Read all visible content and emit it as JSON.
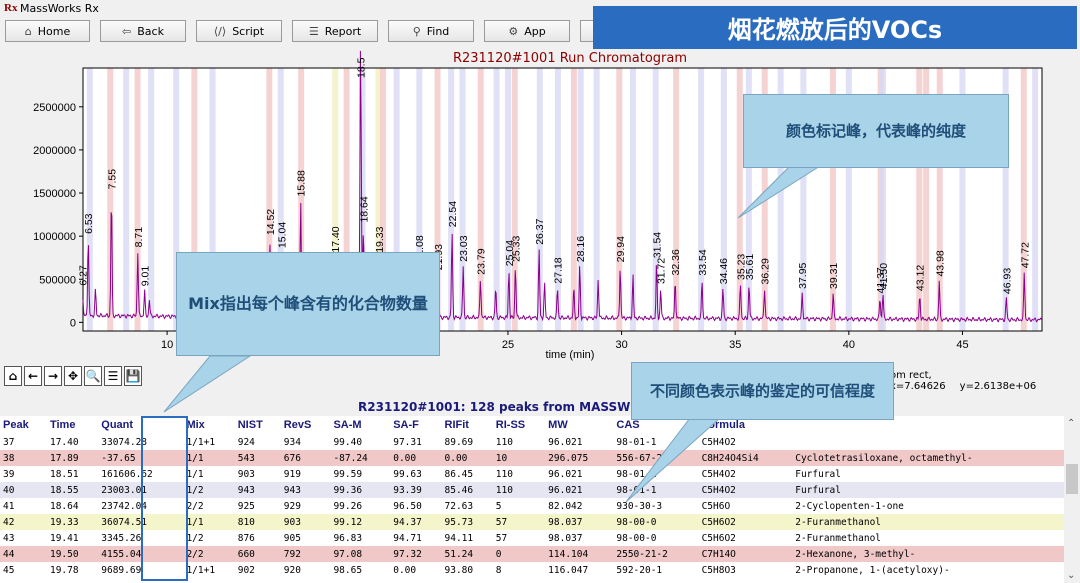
{
  "window": {
    "logo": "Rx",
    "title": "MassWorks Rx"
  },
  "toolbar": [
    {
      "label": "Home",
      "icon": "home-icon",
      "glyph": "⌂"
    },
    {
      "label": "Back",
      "icon": "back-icon",
      "glyph": "⇦"
    },
    {
      "label": "Script",
      "icon": "script-icon",
      "glyph": "⟨/⟩"
    },
    {
      "label": "Report",
      "icon": "report-icon",
      "glyph": "☰"
    },
    {
      "label": "Find",
      "icon": "find-icon",
      "glyph": "⚲"
    },
    {
      "label": "App",
      "icon": "app-icon",
      "glyph": "⚙"
    }
  ],
  "banner": "烟花燃放后的VOCs",
  "chart": {
    "title": "R231120#1001 Run Chromatogram",
    "xlabel": "time (min)"
  },
  "chart_data": {
    "type": "line",
    "title": "R231120#1001 Run Chromatogram",
    "xlabel": "time (min)",
    "ylabel": "",
    "xlim": [
      6.3,
      48.5
    ],
    "ylim": [
      -100000,
      2950000
    ],
    "xticks": [
      10,
      15,
      20,
      25,
      30,
      35,
      40,
      45
    ],
    "yticks": [
      0,
      500000,
      1000000,
      1500000,
      2000000,
      2500000
    ],
    "ytick_labels": [
      "0",
      "500000",
      "1000000",
      "1500000",
      "2000000",
      "2500000"
    ],
    "baseline": [
      [
        6.3,
        80000
      ],
      [
        10,
        70000
      ],
      [
        20,
        60000
      ],
      [
        30,
        50000
      ],
      [
        40,
        40000
      ],
      [
        48.5,
        30000
      ]
    ],
    "peaks": [
      {
        "t": 6.27,
        "h": 350000
      },
      {
        "t": 6.53,
        "h": 900000
      },
      {
        "t": 6.85,
        "h": 300000
      },
      {
        "t": 7.55,
        "h": 1420000
      },
      {
        "t": 8.71,
        "h": 750000
      },
      {
        "t": 9.01,
        "h": 300000
      },
      {
        "t": 9.22,
        "h": 200000
      },
      {
        "t": 14.52,
        "h": 900000
      },
      {
        "t": 15.04,
        "h": 750000
      },
      {
        "t": 15.88,
        "h": 1350000
      },
      {
        "t": 17.4,
        "h": 700000
      },
      {
        "t": 17.89,
        "h": 300000
      },
      {
        "t": 18.51,
        "h": 2900000
      },
      {
        "t": 18.55,
        "h": 850000
      },
      {
        "t": 18.64,
        "h": 1050000
      },
      {
        "t": 19.33,
        "h": 700000
      },
      {
        "t": 20.08,
        "h": 450000
      },
      {
        "t": 21.08,
        "h": 600000
      },
      {
        "t": 21.93,
        "h": 500000
      },
      {
        "t": 22.54,
        "h": 1000000
      },
      {
        "t": 23.03,
        "h": 600000
      },
      {
        "t": 23.79,
        "h": 450000
      },
      {
        "t": 24.46,
        "h": 350000
      },
      {
        "t": 25.04,
        "h": 550000
      },
      {
        "t": 25.33,
        "h": 600000
      },
      {
        "t": 26.37,
        "h": 800000
      },
      {
        "t": 26.61,
        "h": 400000
      },
      {
        "t": 27.18,
        "h": 350000
      },
      {
        "t": 27.9,
        "h": 350000
      },
      {
        "t": 28.16,
        "h": 600000
      },
      {
        "t": 28.97,
        "h": 450000
      },
      {
        "t": 29.94,
        "h": 600000
      },
      {
        "t": 30.5,
        "h": 500000
      },
      {
        "t": 31.54,
        "h": 650000
      },
      {
        "t": 31.72,
        "h": 350000
      },
      {
        "t": 32.36,
        "h": 450000
      },
      {
        "t": 33.54,
        "h": 450000
      },
      {
        "t": 34.46,
        "h": 350000
      },
      {
        "t": 35.23,
        "h": 400000
      },
      {
        "t": 35.61,
        "h": 400000
      },
      {
        "t": 36.29,
        "h": 350000
      },
      {
        "t": 37.95,
        "h": 300000
      },
      {
        "t": 39.31,
        "h": 300000
      },
      {
        "t": 41.37,
        "h": 250000
      },
      {
        "t": 41.5,
        "h": 300000
      },
      {
        "t": 43.12,
        "h": 280000
      },
      {
        "t": 43.98,
        "h": 450000
      },
      {
        "t": 46.93,
        "h": 250000
      },
      {
        "t": 47.72,
        "h": 550000
      }
    ],
    "peak_labels": [
      {
        "t": 6.27,
        "text": "6.27"
      },
      {
        "t": 6.53,
        "text": "6.53"
      },
      {
        "t": 7.55,
        "text": "7.55"
      },
      {
        "t": 8.71,
        "text": "8.71"
      },
      {
        "t": 9.01,
        "text": "9.01"
      },
      {
        "t": 14.52,
        "text": "14.52"
      },
      {
        "t": 15.04,
        "text": "15.04"
      },
      {
        "t": 15.88,
        "text": "15.88"
      },
      {
        "t": 17.4,
        "text": "17.40"
      },
      {
        "t": 18.51,
        "text": "18.5"
      },
      {
        "t": 18.64,
        "text": "18.64"
      },
      {
        "t": 19.33,
        "text": "19.33"
      },
      {
        "t": 21.08,
        "text": "21.08"
      },
      {
        "t": 21.93,
        "text": "21.93"
      },
      {
        "t": 22.54,
        "text": "22.54"
      },
      {
        "t": 23.03,
        "text": "23.03"
      },
      {
        "t": 23.79,
        "text": "23.79"
      },
      {
        "t": 25.04,
        "text": "25.04"
      },
      {
        "t": 25.33,
        "text": "25.33"
      },
      {
        "t": 26.37,
        "text": "26.37"
      },
      {
        "t": 27.18,
        "text": "27.18"
      },
      {
        "t": 28.16,
        "text": "28.16"
      },
      {
        "t": 29.94,
        "text": "29.94"
      },
      {
        "t": 31.54,
        "text": "31.54"
      },
      {
        "t": 31.72,
        "text": "31.72"
      },
      {
        "t": 32.36,
        "text": "32.36"
      },
      {
        "t": 33.54,
        "text": "33.54"
      },
      {
        "t": 34.46,
        "text": "34.46"
      },
      {
        "t": 35.23,
        "text": "35.23"
      },
      {
        "t": 35.61,
        "text": "35.61"
      },
      {
        "t": 36.29,
        "text": "36.29"
      },
      {
        "t": 37.95,
        "text": "37.95"
      },
      {
        "t": 39.31,
        "text": "39.31"
      },
      {
        "t": 41.37,
        "text": "41.37"
      },
      {
        "t": 41.5,
        "text": "41.50"
      },
      {
        "t": 43.12,
        "text": "43.12"
      },
      {
        "t": 43.98,
        "text": "43.98"
      },
      {
        "t": 46.93,
        "text": "46.93"
      },
      {
        "t": 47.72,
        "text": "47.72"
      }
    ],
    "bands": [
      {
        "t": 6.6,
        "c": "blue"
      },
      {
        "t": 7.5,
        "c": "red"
      },
      {
        "t": 8.2,
        "c": "blue"
      },
      {
        "t": 8.7,
        "c": "red"
      },
      {
        "t": 9.3,
        "c": "blue"
      },
      {
        "t": 10.4,
        "c": "blue"
      },
      {
        "t": 11.2,
        "c": "red"
      },
      {
        "t": 12.0,
        "c": "blue"
      },
      {
        "t": 14.5,
        "c": "red"
      },
      {
        "t": 15.0,
        "c": "blue"
      },
      {
        "t": 15.9,
        "c": "red"
      },
      {
        "t": 17.4,
        "c": "yellow"
      },
      {
        "t": 17.9,
        "c": "red"
      },
      {
        "t": 18.6,
        "c": "blue"
      },
      {
        "t": 19.3,
        "c": "yellow"
      },
      {
        "t": 19.5,
        "c": "red"
      },
      {
        "t": 20.1,
        "c": "blue"
      },
      {
        "t": 21.1,
        "c": "blue"
      },
      {
        "t": 21.9,
        "c": "red"
      },
      {
        "t": 22.5,
        "c": "blue"
      },
      {
        "t": 23.0,
        "c": "blue"
      },
      {
        "t": 23.8,
        "c": "red"
      },
      {
        "t": 24.5,
        "c": "blue"
      },
      {
        "t": 25.0,
        "c": "blue"
      },
      {
        "t": 25.3,
        "c": "red"
      },
      {
        "t": 26.4,
        "c": "blue"
      },
      {
        "t": 27.2,
        "c": "blue"
      },
      {
        "t": 27.9,
        "c": "red"
      },
      {
        "t": 28.2,
        "c": "blue"
      },
      {
        "t": 28.9,
        "c": "blue"
      },
      {
        "t": 29.9,
        "c": "red"
      },
      {
        "t": 30.5,
        "c": "blue"
      },
      {
        "t": 31.5,
        "c": "blue"
      },
      {
        "t": 32.4,
        "c": "red"
      },
      {
        "t": 33.5,
        "c": "blue"
      },
      {
        "t": 34.5,
        "c": "blue"
      },
      {
        "t": 35.2,
        "c": "red"
      },
      {
        "t": 35.6,
        "c": "blue"
      },
      {
        "t": 36.3,
        "c": "red"
      },
      {
        "t": 37.0,
        "c": "blue"
      },
      {
        "t": 38.0,
        "c": "blue"
      },
      {
        "t": 39.3,
        "c": "red"
      },
      {
        "t": 40.0,
        "c": "blue"
      },
      {
        "t": 41.4,
        "c": "red"
      },
      {
        "t": 41.5,
        "c": "blue"
      },
      {
        "t": 43.1,
        "c": "red"
      },
      {
        "t": 43.4,
        "c": "red"
      },
      {
        "t": 44.0,
        "c": "red"
      },
      {
        "t": 45.0,
        "c": "blue"
      },
      {
        "t": 46.9,
        "c": "blue"
      },
      {
        "t": 47.7,
        "c": "red"
      },
      {
        "t": 48.2,
        "c": "blue"
      }
    ]
  },
  "navbar": [
    "⌂",
    "←",
    "→",
    "✥",
    "🔍",
    "☰",
    "💾"
  ],
  "coords": {
    "x": "om rect, x=7.64626",
    "y": "y=2.6138e+06"
  },
  "table": {
    "title": "R231120#1001: 128 peaks from MASSWORK-",
    "columns": [
      "Peak",
      "Time",
      "Quant",
      "Mix",
      "NIST",
      "RevS",
      "SA-M",
      "SA-F",
      "RIFit",
      "RI-SS",
      "MW",
      "CAS",
      "Formula",
      ""
    ],
    "rows": [
      {
        "q": "q1",
        "cells": [
          "37",
          "17.40",
          "33074.28",
          "1/1+1",
          "924",
          "934",
          "99.40",
          "97.31",
          "89.69",
          "110",
          "96.021",
          "98-01-1",
          "C5H4O2",
          ""
        ]
      },
      {
        "q": "q2",
        "cells": [
          "38",
          "17.89",
          "-37.65",
          "1/1",
          "543",
          "676",
          "-87.24",
          "0.00",
          "0.00",
          "10",
          "296.075",
          "556-67-2",
          "C8H24O4Si4",
          "Cyclotetrasiloxane, octamethyl-"
        ]
      },
      {
        "q": "q1",
        "cells": [
          "39",
          "18.51",
          "161606.62",
          "1/1",
          "903",
          "919",
          "99.59",
          "99.63",
          "86.45",
          "110",
          "96.021",
          "98-01-1",
          "C5H4O2",
          "Furfural"
        ]
      },
      {
        "q": "q3",
        "cells": [
          "40",
          "18.55",
          "23003.01",
          "1/2",
          "943",
          "943",
          "99.36",
          "93.39",
          "85.46",
          "110",
          "96.021",
          "98-01-1",
          "C5H4O2",
          "Furfural"
        ]
      },
      {
        "q": "q1",
        "cells": [
          "41",
          "18.64",
          "23742.04",
          "2/2",
          "925",
          "929",
          "99.26",
          "96.50",
          "72.63",
          "5",
          "82.042",
          "930-30-3",
          "C5H6O",
          "2-Cyclopenten-1-one"
        ]
      },
      {
        "q": "q4",
        "cells": [
          "42",
          "19.33",
          "36074.51",
          "1/1",
          "810",
          "903",
          "99.12",
          "94.37",
          "95.73",
          "57",
          "98.037",
          "98-00-0",
          "C5H6O2",
          "2-Furanmethanol"
        ]
      },
      {
        "q": "q1",
        "cells": [
          "43",
          "19.41",
          "3345.26",
          "1/2",
          "876",
          "905",
          "96.83",
          "94.71",
          "94.11",
          "57",
          "98.037",
          "98-00-0",
          "C5H6O2",
          "2-Furanmethanol"
        ]
      },
      {
        "q": "q2",
        "cells": [
          "44",
          "19.50",
          "4155.04",
          "2/2",
          "660",
          "792",
          "97.08",
          "97.32",
          "51.24",
          "0",
          "114.104",
          "2550-21-2",
          "C7H14O",
          "2-Hexanone, 3-methyl-"
        ]
      },
      {
        "q": "q1",
        "cells": [
          "45",
          "19.78",
          "9689.69",
          "1/1+1",
          "902",
          "920",
          "98.65",
          "0.00",
          "93.80",
          "8",
          "116.047",
          "592-20-1",
          "C5H8O3",
          "2-Propanone, 1-(acetyloxy)-"
        ]
      }
    ]
  },
  "callouts": {
    "purity": "颜色标记峰，代表峰的纯度",
    "mix": "Mix指出每个峰含有的化合物数量",
    "confidence": "不同颜色表示峰的鉴定的可信程度"
  },
  "colors": {
    "trace": "#8b008b",
    "band_blue": "#d8d8f4",
    "band_red": "#f4c8c8",
    "band_yellow": "#f0f0c0",
    "banner": "#2a6cc0",
    "callout": "#a9d3e8",
    "title_red": "#8b0000",
    "header_navy": "#1a1a7a"
  }
}
